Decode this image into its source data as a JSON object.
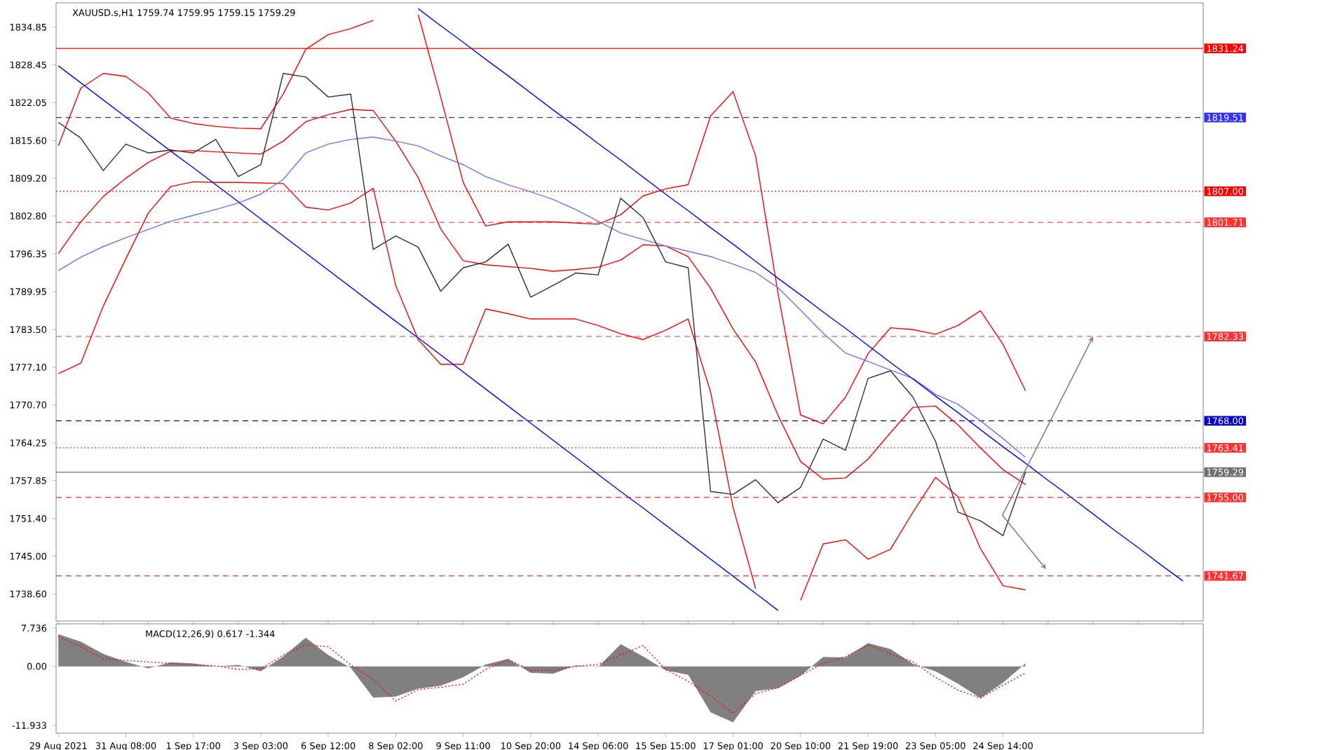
{
  "chart_data": [
    {
      "type": "line",
      "title": "XAUUSD.s,H1 1759.74 1759.95 1759.15 1759.29",
      "ylim": [
        1734,
        1839
      ],
      "categories": [
        null,
        null,
        null,
        null,
        null,
        null,
        null,
        null,
        null,
        null,
        null,
        null,
        null,
        null,
        null,
        null,
        null,
        null,
        null,
        null,
        null,
        null,
        null,
        null,
        null,
        null,
        null,
        null,
        null,
        null,
        null,
        null,
        null,
        null,
        null,
        null,
        null,
        null,
        null,
        null,
        null,
        null,
        null,
        null,
        null,
        null,
        null,
        null,
        null,
        null,
        null
      ],
      "yticks": [
        1834.85,
        1828.45,
        1822.05,
        {
          "value": 1815.6,
          "label": "1815.60"
        },
        {
          "value": 1809.2,
          "label": "1809.20"
        },
        {
          "value": 1802.8,
          "label": "1802.80"
        },
        1796.35,
        1789.95,
        {
          "value": 1783.5,
          "label": "1783.50"
        },
        {
          "value": 1777.1,
          "label": "1777.10"
        },
        {
          "value": 1770.7,
          "label": "1770.70"
        },
        1764.25,
        1757.85,
        {
          "value": 1751.4,
          "label": "1751.40"
        },
        {
          "value": 1745,
          "label": "1745.00"
        },
        {
          "value": 1738.6,
          "label": "1738.60"
        }
      ],
      "series": [
        {
          "color": "#ff0000",
          "values": [
            1814.7,
            1824.5,
            1827,
            1826.5,
            1823.7,
            1819.4,
            1818.5,
            1818.0,
            1817.7,
            1817.6,
            1823.5,
            1831.1,
            1833.6,
            1834.6,
            1836,
            null,
            1837.0,
            1823,
            1808.5,
            1801.1,
            1801.8,
            1801.8,
            1801.8,
            1801.6,
            1801.4,
            1803,
            1806.2,
            1807.4,
            1808.1,
            1819.8,
            1823.9,
            1813,
            1789.6,
            1769,
            1767.5,
            1772,
            1779.4,
            1783.8,
            1783.5,
            1782.7,
            1784.2,
            1786.7,
            1781,
            1773.1,
            null,
            null,
            null,
            null,
            null,
            null,
            null
          ]
        },
        {
          "color": "#ff0000",
          "values": [
            1796.4,
            1801.8,
            1806.1,
            1809.2,
            1811.9,
            1813.8,
            1813.9,
            1813.7,
            1813.5,
            1813.3,
            1815.5,
            1818.8,
            1820,
            1820.9,
            1820.7,
            1815.5,
            1809.3,
            1800.6,
            1795.2,
            1794.5,
            1794.2,
            1793.9,
            1793.4,
            1793.7,
            1794.1,
            1795.3,
            1797.9,
            1797.7,
            1795.9,
            1790.5,
            1783.6,
            1778.0,
            1768.9,
            1761.1,
            1758.1,
            1758.3,
            1761.5,
            1766.0,
            1770.3,
            1770.5,
            1767.3,
            1763.4,
            1759.7,
            1757.2,
            null,
            null,
            null,
            null,
            null,
            null,
            null
          ]
        },
        {
          "color": "#ff0000",
          "values": [
            1776.0,
            1777.8,
            1787.5,
            1795.5,
            1803.3,
            1807.8,
            1808.6,
            1808.5,
            1808.5,
            1808.4,
            1808.3,
            1804.3,
            1803.8,
            1805.0,
            1807.5,
            1791,
            1781.8,
            1777.6,
            1777.6,
            1787.0,
            1786.2,
            1785.3,
            1785.3,
            1785.3,
            1784.2,
            1782.8,
            1781.8,
            1783.4,
            1785.3,
            1772.9,
            1753.3,
            1739.5,
            null,
            1737.5,
            1747.1,
            1747.8,
            1744.5,
            1746.2,
            1752.5,
            1758.4,
            1755.1,
            1746.3,
            1740.0,
            1739.3,
            null,
            null,
            null,
            null,
            null,
            null,
            null
          ]
        },
        {
          "color": "#7070ff",
          "values": [
            1793.5,
            1795.8,
            1797.6,
            1799.1,
            1800.5,
            1801.9,
            1802.9,
            1803.9,
            1805.0,
            1806.5,
            1809.0,
            1813.5,
            1815.0,
            1815.8,
            1816.2,
            1815.5,
            1814.7,
            1813.0,
            1811.5,
            1809.5,
            1808.1,
            1806.9,
            1805.6,
            1803.9,
            1801.9,
            1799.9,
            1798.8,
            1797.7,
            1796.8,
            1795.9,
            1794.6,
            1793.2,
            1790.6,
            1786.8,
            1782.9,
            1779.5,
            1778.1,
            1776.6,
            1775.2,
            1772.5,
            1770.8,
            1768.0,
            1765.0,
            1761.8,
            null,
            null,
            null,
            null,
            null,
            null,
            null
          ]
        },
        {
          "color": "#0000ff",
          "values": [
            null,
            null,
            null,
            null,
            null,
            null,
            null,
            null,
            null,
            null,
            null,
            null,
            null,
            null,
            null,
            null,
            1838.0,
            1835.1,
            1832.3,
            1829.4,
            1826.6,
            1823.7,
            1820.8,
            1818.0,
            1815.1,
            1812.3,
            1809.4,
            1806.5,
            1803.7,
            1800.8,
            1798.0,
            1795.1,
            1792.2,
            1789.4,
            1786.5,
            1783.7,
            1780.8,
            1777.9,
            1775.1,
            1772.2,
            1769.4,
            1766.5,
            1763.6,
            1760.8,
            1757.9,
            1755.1,
            1752.2,
            1749.3,
            1746.5,
            1743.6,
            1740.8
          ]
        },
        {
          "color": "#0000ff",
          "values": [
            1828.3,
            1825.4,
            1822.5,
            1819.6,
            1816.7,
            1813.8,
            1811.0,
            1808.1,
            1805.2,
            1802.3,
            1799.4,
            1796.5,
            1793.6,
            1790.7,
            1787.8,
            1784.9,
            1782.1,
            1779.2,
            1776.3,
            1773.4,
            1770.5,
            1767.6,
            1764.7,
            1761.8,
            1758.9,
            1756.0,
            1753.2,
            1750.3,
            1747.4,
            1744.5,
            1741.6,
            1738.7,
            1735.8,
            null,
            null,
            null,
            null,
            null,
            null,
            null,
            null,
            null,
            null,
            null,
            null,
            null,
            null,
            null,
            null,
            null,
            null
          ]
        },
        {
          "color": "#303030",
          "values": [
            1818.7,
            1816,
            1810.5,
            1815,
            1813.5,
            1814.0,
            1813.5,
            1815.8,
            1809.5,
            1811.5,
            1827,
            1826.4,
            1823,
            1823.5,
            1797.1,
            1799.4,
            1797.5,
            1790,
            1794,
            1795,
            1798,
            1789,
            1791,
            1793.1,
            1792.8,
            1805.8,
            1802.5,
            1795,
            1794,
            1756,
            1755.5,
            1758,
            1754.1,
            1756.7,
            1764.9,
            1763,
            1775.2,
            1776.5,
            1772,
            1764.5,
            1752.5,
            1751,
            1748.5,
            1759.3,
            null,
            null,
            null,
            null,
            null,
            null,
            null
          ]
        }
      ],
      "ref_lines": [
        {
          "axis": "y",
          "value": 1831.24,
          "label": "1831.24",
          "color": "#ff0000",
          "line_style": "solid"
        },
        {
          "axis": "y",
          "value": 1819.51,
          "label": "1819.51",
          "color": "#3030ff",
          "line_style": "dashed"
        },
        {
          "axis": "y",
          "value": 1807.0,
          "label": "1807.00",
          "color": "#ff0000",
          "line_style": "dotted"
        },
        {
          "axis": "y",
          "value": 1801.71,
          "label": "1801.71",
          "color": "#ff3030",
          "line_style": "dashed"
        },
        {
          "axis": "y",
          "value": 1782.33,
          "label": "1782.33",
          "color": "#ff3030",
          "line_style": "dashed"
        },
        {
          "axis": "y",
          "value": 1768.0,
          "label": "1768.00",
          "color": "#0000cc",
          "line_style": "dashed"
        },
        {
          "axis": "y",
          "value": 1763.41,
          "label": "1763.41",
          "color": "#ff3030",
          "line_style": "dotted"
        },
        {
          "axis": "y",
          "value": 1759.29,
          "label": "1759.29",
          "color": "#707070",
          "line_style": "solid"
        },
        {
          "axis": "y",
          "value": 1755.0,
          "label": "1755.00",
          "color": "#ff3030",
          "line_style": "dashed"
        },
        {
          "axis": "y",
          "value": 1741.67,
          "label": "1741.67",
          "color": "#ff3030",
          "line_style": "dashed"
        }
      ]
    },
    {
      "type": "area",
      "title": "MACD(12,26,9) 0.617 -1.344",
      "ylim": [
        -13.5,
        8.6
      ],
      "categories": [
        "29 Aug 2021",
        null,
        null,
        "31 Aug 08:00",
        null,
        null,
        "1 Sep 17:00",
        null,
        null,
        "3 Sep 03:00",
        null,
        null,
        "6 Sep 12:00",
        null,
        null,
        "8 Sep 02:00",
        null,
        null,
        "9 Sep 11:00",
        null,
        null,
        "10 Sep 20:00",
        null,
        null,
        "14 Sep 06:00",
        null,
        null,
        "15 Sep 15:00",
        null,
        null,
        "17 Sep 01:00",
        null,
        null,
        "20 Sep 10:00",
        null,
        null,
        "21 Sep 19:00",
        null,
        null,
        "23 Sep 05:00",
        null,
        null,
        "24 Sep 14:00",
        null,
        null,
        null,
        null,
        null,
        null,
        null,
        null
      ],
      "yticks": [
        7.736,
        {
          "value": 0,
          "label": "0.00"
        },
        -11.933
      ],
      "series": [
        {
          "color": "#808080",
          "values": [
            6.5,
            5.0,
            2.5,
            0.9,
            -0.4,
            0.8,
            0.6,
            0.0,
            0.3,
            -1.0,
            2.0,
            5.8,
            2.3,
            -0.3,
            -6.3,
            -6.1,
            -4.5,
            -3.9,
            -2.2,
            0.4,
            1.5,
            -1.3,
            -1.5,
            0.2,
            -0.1,
            4.5,
            2.0,
            -0.8,
            -1.7,
            -9.3,
            -11.3,
            -5.0,
            -4.4,
            -1.9,
            1.9,
            1.8,
            4.7,
            3.5,
            0.5,
            -1.0,
            -3.5,
            -6.4,
            -3.3,
            0.6,
            null,
            null,
            null,
            null,
            null,
            null,
            null
          ]
        },
        {
          "type": "line",
          "color": "#ff0000",
          "line_style": "dotted",
          "values": [
            6.0,
            4.0,
            1.5,
            1.2,
            0.9,
            0.6,
            0.3,
            0.1,
            -0.6,
            -0.5,
            2.3,
            4.3,
            4.0,
            0.3,
            -2.7,
            -7.0,
            -4.7,
            -4.2,
            -3.6,
            -0.6,
            1.4,
            -0.8,
            -0.8,
            0,
            0.4,
            2.3,
            4.2,
            -0.6,
            -3.0,
            -6.0,
            -9.5,
            -5.5,
            -4.3,
            -1.8,
            0.6,
            2.0,
            4.3,
            2.5,
            0.9,
            -2.2,
            -4.8,
            -6.4,
            -3.8,
            -1.3,
            null,
            null,
            null,
            null,
            null,
            null,
            null
          ]
        }
      ]
    }
  ]
}
